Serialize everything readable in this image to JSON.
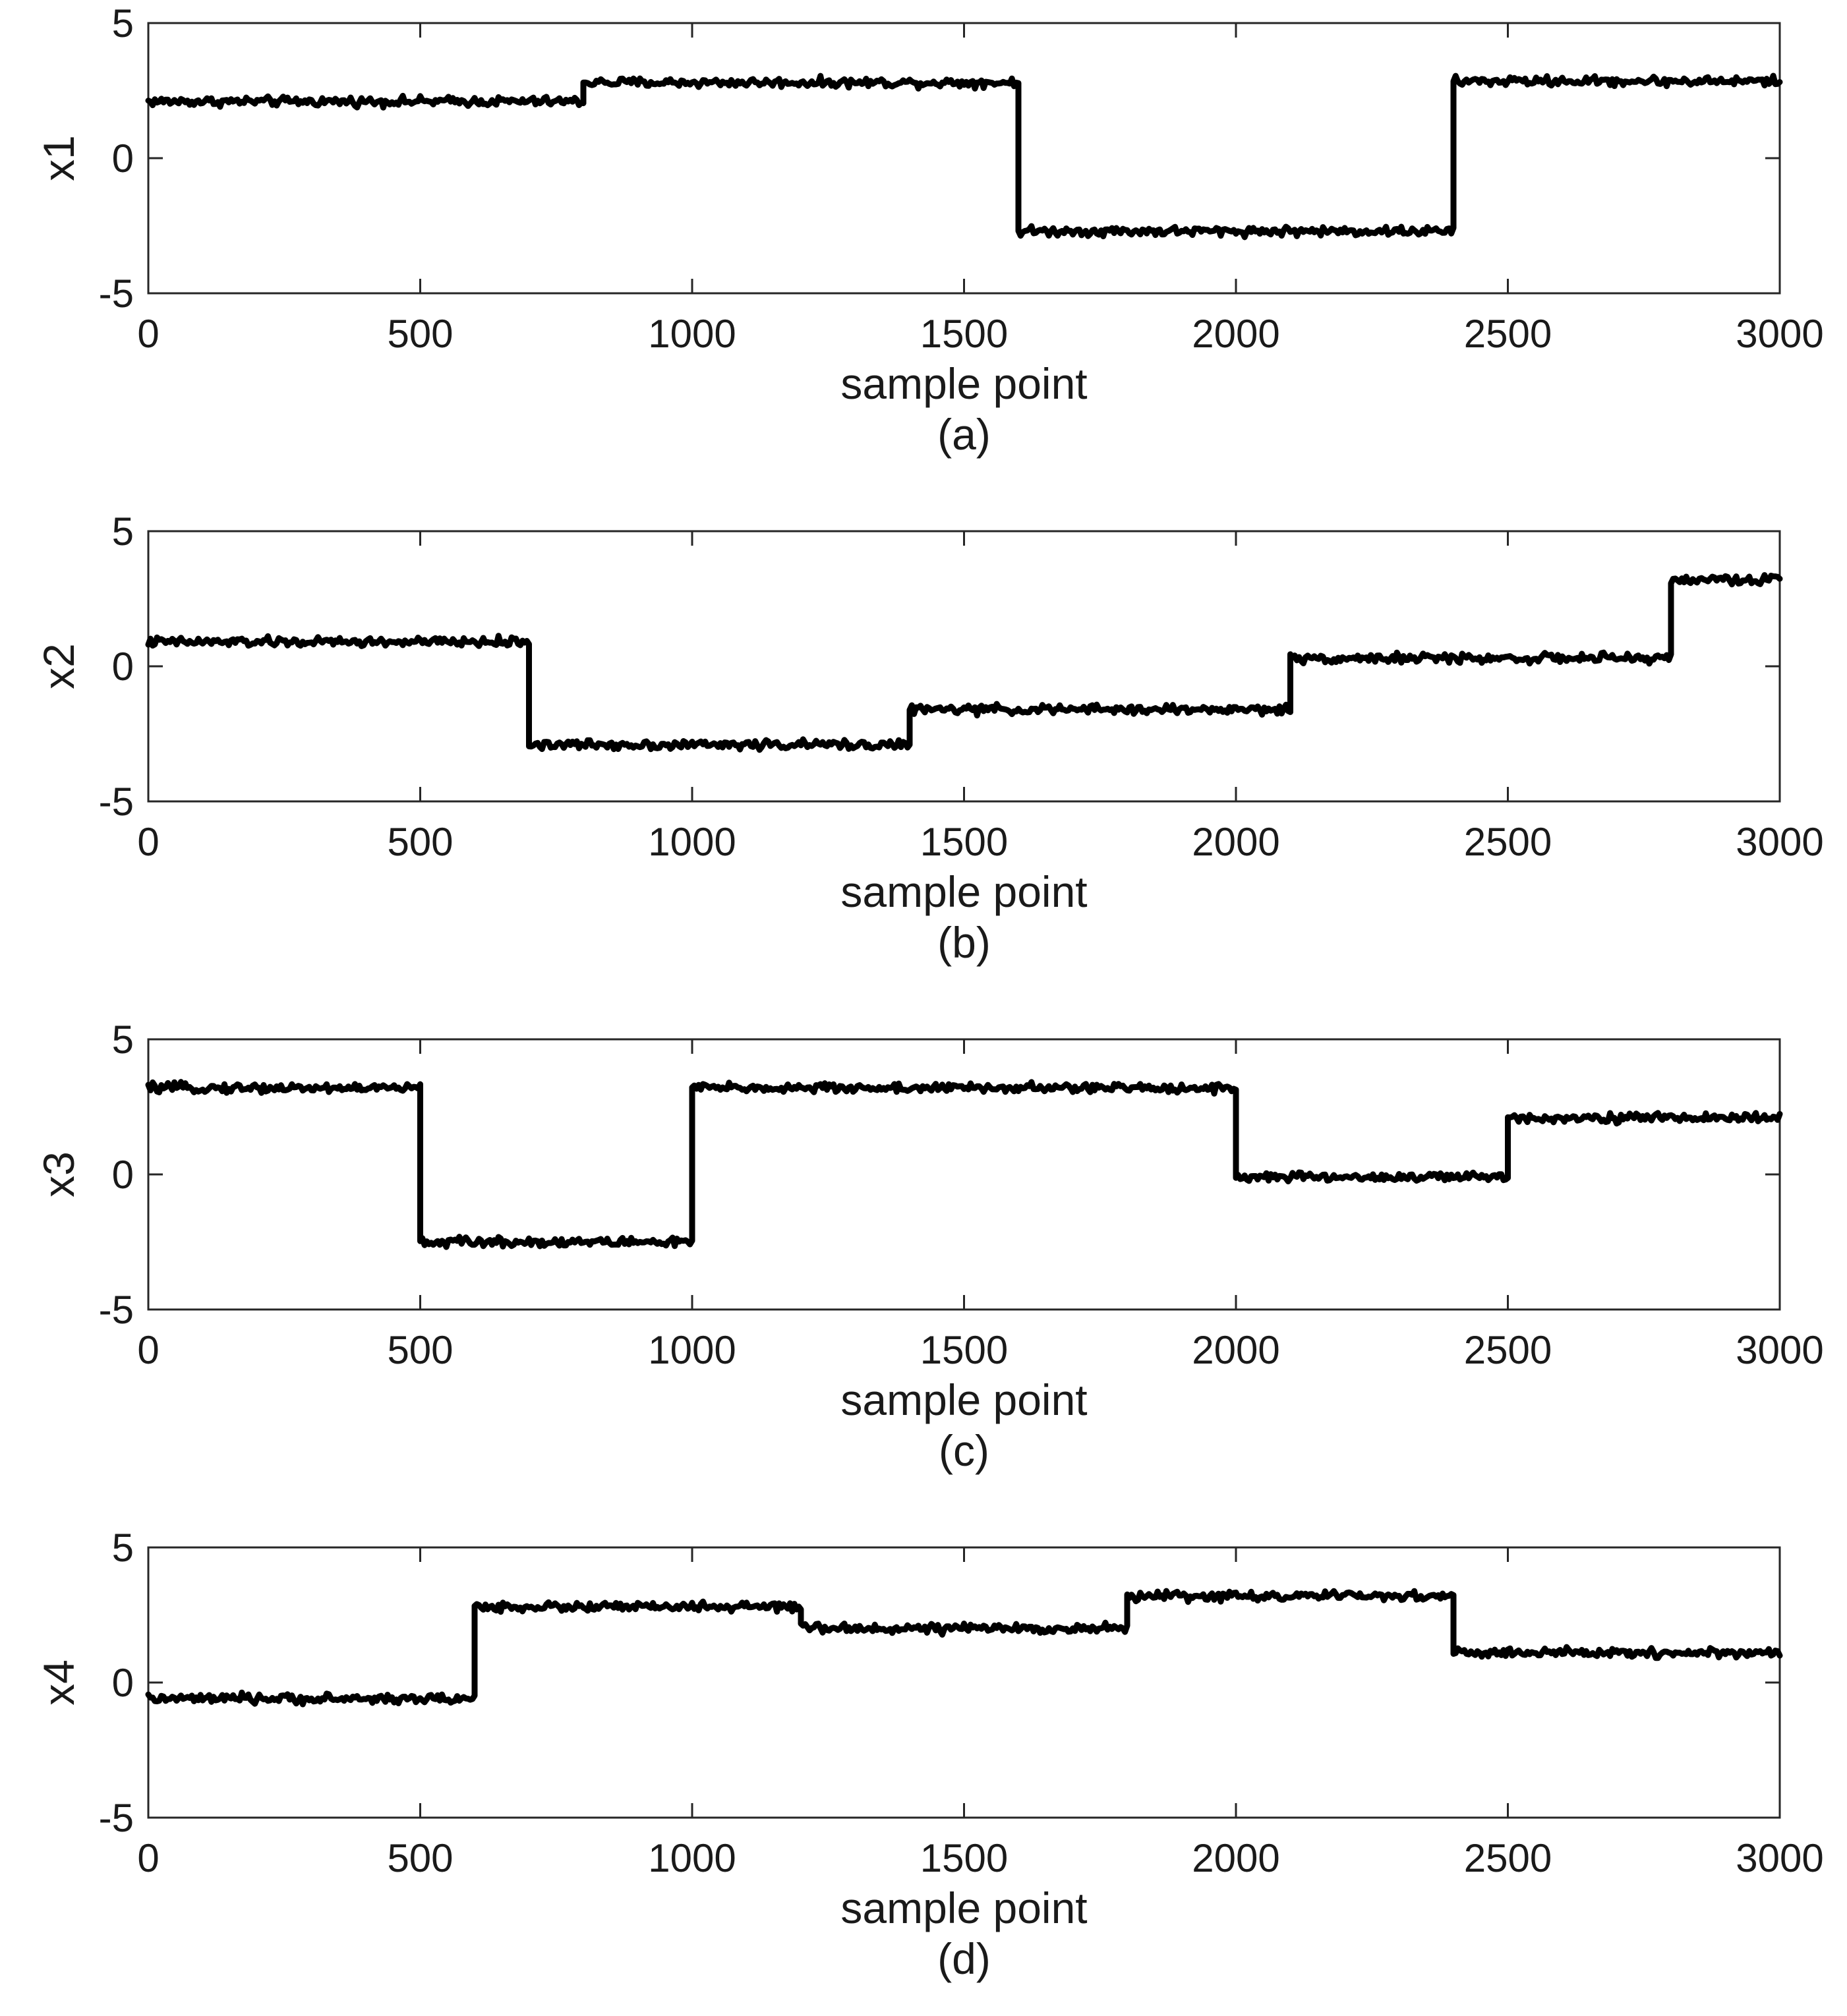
{
  "chart_data": [
    {
      "type": "line",
      "panel": "a",
      "caption": "(a)",
      "xlabel": "sample point",
      "ylabel": "x1",
      "xlim": [
        0,
        3000
      ],
      "ylim": [
        -5,
        5
      ],
      "xticks": [
        0,
        500,
        1000,
        1500,
        2000,
        2500,
        3000
      ],
      "yticks": [
        -5,
        0,
        5
      ],
      "grid": false,
      "series": [
        {
          "color": "#000000",
          "noise": 0.12,
          "segments": [
            {
              "x_start": 0,
              "x_end": 800,
              "y": 2.1
            },
            {
              "x_start": 800,
              "x_end": 1600,
              "y": 2.8
            },
            {
              "x_start": 1600,
              "x_end": 2400,
              "y": -2.7
            },
            {
              "x_start": 2400,
              "x_end": 3000,
              "y": 2.85
            }
          ]
        }
      ]
    },
    {
      "type": "line",
      "panel": "b",
      "caption": "(b)",
      "xlabel": "sample point",
      "ylabel": "x2",
      "xlim": [
        0,
        3000
      ],
      "ylim": [
        -5,
        5
      ],
      "xticks": [
        0,
        500,
        1000,
        1500,
        2000,
        2500,
        3000
      ],
      "yticks": [
        -5,
        0,
        5
      ],
      "grid": false,
      "series": [
        {
          "color": "#000000",
          "noise": 0.12,
          "segments": [
            {
              "x_start": 0,
              "x_end": 700,
              "y": 0.9
            },
            {
              "x_start": 700,
              "x_end": 1400,
              "y": -2.9
            },
            {
              "x_start": 1400,
              "x_end": 2100,
              "y": -1.6
            },
            {
              "x_start": 2100,
              "x_end": 2800,
              "y": 0.3
            },
            {
              "x_start": 2800,
              "x_end": 3000,
              "y": 3.2
            }
          ]
        }
      ]
    },
    {
      "type": "line",
      "panel": "c",
      "caption": "(c)",
      "xlabel": "sample point",
      "ylabel": "x3",
      "xlim": [
        0,
        3000
      ],
      "ylim": [
        -5,
        5
      ],
      "xticks": [
        0,
        500,
        1000,
        1500,
        2000,
        2500,
        3000
      ],
      "yticks": [
        -5,
        0,
        5
      ],
      "grid": false,
      "series": [
        {
          "color": "#000000",
          "noise": 0.12,
          "segments": [
            {
              "x_start": 0,
              "x_end": 500,
              "y": 3.2
            },
            {
              "x_start": 500,
              "x_end": 1000,
              "y": -2.5
            },
            {
              "x_start": 1000,
              "x_end": 2000,
              "y": 3.2
            },
            {
              "x_start": 2000,
              "x_end": 2500,
              "y": -0.1
            },
            {
              "x_start": 2500,
              "x_end": 3000,
              "y": 2.1
            }
          ]
        }
      ]
    },
    {
      "type": "line",
      "panel": "d",
      "caption": "(d)",
      "xlabel": "sample point",
      "ylabel": "x4",
      "xlim": [
        0,
        3000
      ],
      "ylim": [
        -5,
        5
      ],
      "xticks": [
        0,
        500,
        1000,
        1500,
        2000,
        2500,
        3000
      ],
      "yticks": [
        -5,
        0,
        5
      ],
      "grid": false,
      "series": [
        {
          "color": "#000000",
          "noise": 0.12,
          "segments": [
            {
              "x_start": 0,
              "x_end": 600,
              "y": -0.6
            },
            {
              "x_start": 600,
              "x_end": 1200,
              "y": 2.8
            },
            {
              "x_start": 1200,
              "x_end": 1800,
              "y": 2.0
            },
            {
              "x_start": 1800,
              "x_end": 2400,
              "y": 3.2
            },
            {
              "x_start": 2400,
              "x_end": 3000,
              "y": 1.1
            }
          ]
        }
      ]
    }
  ]
}
